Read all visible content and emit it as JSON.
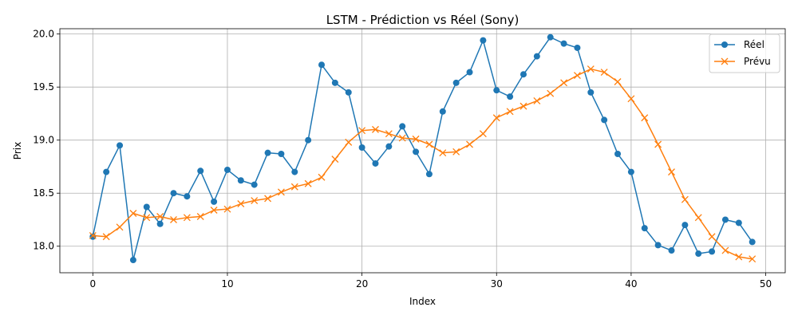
{
  "chart_data": {
    "type": "line",
    "title": "LSTM - Prédiction vs Réel (Sony)",
    "xlabel": "Index",
    "ylabel": "Prix",
    "xlim": [
      -2.45,
      51.45
    ],
    "ylim": [
      17.75,
      20.05
    ],
    "xticks": [
      0,
      10,
      20,
      30,
      40,
      50
    ],
    "yticks": [
      18.0,
      18.5,
      19.0,
      19.5,
      20.0
    ],
    "xtick_labels": [
      "0",
      "10",
      "20",
      "30",
      "40",
      "50"
    ],
    "ytick_labels": [
      "18.0",
      "18.5",
      "19.0",
      "19.5",
      "20.0"
    ],
    "grid": true,
    "legend_position": "top-right",
    "x": [
      0,
      1,
      2,
      3,
      4,
      5,
      6,
      7,
      8,
      9,
      10,
      11,
      12,
      13,
      14,
      15,
      16,
      17,
      18,
      19,
      20,
      21,
      22,
      23,
      24,
      25,
      26,
      27,
      28,
      29,
      30,
      31,
      32,
      33,
      34,
      35,
      36,
      37,
      38,
      39,
      40,
      41,
      42,
      43,
      44,
      45,
      46,
      47,
      48,
      49
    ],
    "series": [
      {
        "name": "Réel",
        "color": "#1f77b4",
        "marker": "circle",
        "values": [
          18.09,
          18.7,
          18.95,
          17.87,
          18.37,
          18.21,
          18.5,
          18.47,
          18.71,
          18.42,
          18.72,
          18.62,
          18.58,
          18.88,
          18.87,
          18.7,
          19.0,
          19.71,
          19.54,
          19.45,
          18.93,
          18.78,
          18.94,
          19.13,
          18.89,
          18.68,
          19.27,
          19.54,
          19.64,
          19.94,
          19.47,
          19.41,
          19.62,
          19.79,
          19.97,
          19.91,
          19.87,
          19.45,
          19.19,
          18.87,
          18.7,
          18.17,
          18.01,
          17.96,
          18.2,
          17.93,
          17.95,
          18.25,
          18.22,
          18.04
        ]
      },
      {
        "name": "Prévu",
        "color": "#ff7f0e",
        "marker": "x",
        "values": [
          18.1,
          18.09,
          18.18,
          18.31,
          18.27,
          18.28,
          18.25,
          18.27,
          18.28,
          18.34,
          18.35,
          18.4,
          18.43,
          18.45,
          18.51,
          18.56,
          18.59,
          18.65,
          18.82,
          18.98,
          19.09,
          19.1,
          19.06,
          19.02,
          19.01,
          18.96,
          18.88,
          18.89,
          18.96,
          19.06,
          19.21,
          19.27,
          19.32,
          19.37,
          19.44,
          19.54,
          19.61,
          19.67,
          19.64,
          19.55,
          19.39,
          19.21,
          18.96,
          18.7,
          18.44,
          18.27,
          18.09,
          17.96,
          17.9,
          17.88
        ]
      }
    ]
  }
}
